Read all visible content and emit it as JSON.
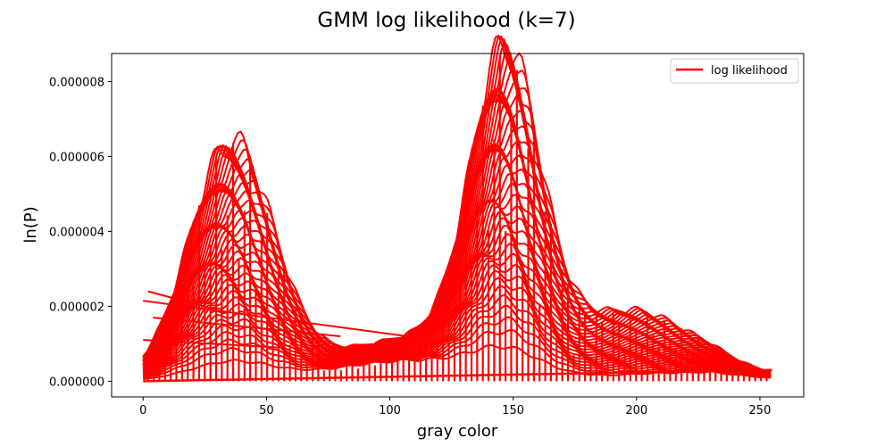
{
  "chart_data": {
    "type": "line",
    "title": "GMM log likelihood (k=7)",
    "xlabel": "gray color",
    "ylabel": "ln(P)",
    "xlim": [
      -12.75,
      267.75
    ],
    "ylim": [
      -4.2e-07,
      8.75e-06
    ],
    "x_ticks": [
      0,
      50,
      100,
      150,
      200,
      250
    ],
    "x_tick_labels": [
      "0",
      "50",
      "100",
      "150",
      "200",
      "250"
    ],
    "y_ticks": [
      0.0,
      2e-06,
      4e-06,
      6e-06,
      8e-06
    ],
    "y_tick_labels": [
      "0.000000",
      "0.000002",
      "0.000004",
      "0.000006",
      "0.000008"
    ],
    "grid": false,
    "legend": {
      "position": "top-right",
      "entries": [
        "log likelihood"
      ]
    },
    "series": [
      {
        "name": "log likelihood",
        "color": "#ff0000",
        "description_points": {
          "x": [
            0,
            10,
            20,
            30,
            36,
            45,
            55,
            65,
            80,
            100,
            115,
            125,
            135,
            147,
            160,
            170,
            180,
            190,
            200,
            210,
            220,
            235,
            245,
            255
          ],
          "y": [
            2.15e-06,
            3.2e-06,
            5.1e-06,
            6.1e-06,
            6.35e-06,
            6e-06,
            4.5e-06,
            2.5e-06,
            8e-07,
            1.1e-06,
            1.6e-06,
            3.2e-06,
            6.8e-06,
            8.3e-06,
            6.1e-06,
            2.8e-06,
            1.7e-06,
            1.8e-06,
            1.75e-06,
            1.5e-06,
            1.1e-06,
            6e-07,
            4e-07,
            3e-07
          ]
        }
      }
    ]
  }
}
